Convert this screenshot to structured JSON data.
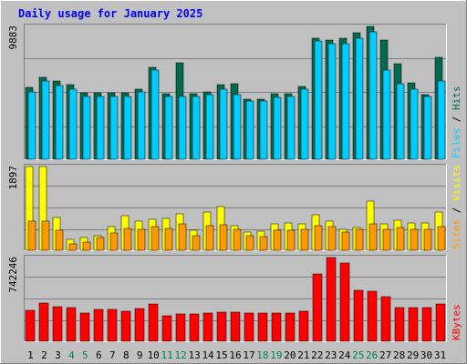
{
  "chart_data": {
    "type": "bar",
    "title": "Daily usage for January 2025",
    "categories": [
      "1",
      "2",
      "3",
      "4",
      "5",
      "6",
      "7",
      "8",
      "9",
      "10",
      "11",
      "12",
      "13",
      "14",
      "15",
      "16",
      "17",
      "18",
      "19",
      "20",
      "21",
      "22",
      "23",
      "24",
      "25",
      "26",
      "27",
      "28",
      "29",
      "30",
      "31"
    ],
    "weekend_days": [
      "4",
      "5",
      "11",
      "12",
      "18",
      "19",
      "25",
      "26"
    ],
    "panels": [
      {
        "id": "hits-files-pages",
        "max_label": "9883",
        "ymax": 9883,
        "series": [
          {
            "name": "Hits",
            "color": "#006A4E",
            "values": [
              5330,
              6110,
              5810,
              5540,
              4910,
              4910,
              4910,
              4910,
              5200,
              6850,
              4860,
              7170,
              4860,
              5040,
              5520,
              5590,
              4500,
              4460,
              4860,
              4860,
              5410,
              9000,
              8880,
              9030,
              9430,
              9883,
              8900,
              7110,
              5710,
              4800,
              7600
            ]
          },
          {
            "name": "Files",
            "color": "#00CCFF",
            "values": [
              5000,
              5800,
              5500,
              5200,
              4700,
              4700,
              4700,
              4700,
              5000,
              6650,
              4700,
              4700,
              4700,
              4800,
              5200,
              4800,
              4300,
              4300,
              4600,
              4700,
              5200,
              8800,
              8600,
              8600,
              9030,
              9500,
              6600,
              5600,
              5200,
              4700,
              5800
            ]
          }
        ]
      },
      {
        "id": "visits-sites",
        "max_label": "1897",
        "ymax": 1897,
        "series": [
          {
            "name": "Visits",
            "color": "#FFFF00",
            "values": [
              1897,
              1897,
              750,
              250,
              280,
              330,
              530,
              780,
              660,
              700,
              720,
              830,
              450,
              860,
              980,
              560,
              410,
              440,
              600,
              610,
              590,
              810,
              660,
              480,
              510,
              1110,
              590,
              680,
              610,
              620,
              860
            ]
          },
          {
            "name": "Sites",
            "color": "#FF9900",
            "values": [
              660,
              660,
              460,
              150,
              180,
              280,
              400,
              500,
              480,
              540,
              490,
              600,
              340,
              550,
              580,
              470,
              330,
              300,
              460,
              460,
              480,
              560,
              530,
              420,
              480,
              600,
              480,
              510,
              480,
              480,
              530
            ]
          }
        ]
      },
      {
        "id": "kbytes",
        "max_label": "742246",
        "ymax": 742246,
        "series": [
          {
            "name": "KBytes",
            "color": "#FF0000",
            "values": [
              277000,
              336000,
              307000,
              302000,
              253000,
              282000,
              282000,
              268000,
              287000,
              331000,
              228000,
              243000,
              243000,
              248000,
              258000,
              258000,
              253000,
              253000,
              253000,
              253000,
              263000,
              595000,
              742246,
              693000,
              453000,
              443000,
              394000,
              302000,
              300000,
              300000,
              333000
            ]
          }
        ]
      }
    ]
  }
}
